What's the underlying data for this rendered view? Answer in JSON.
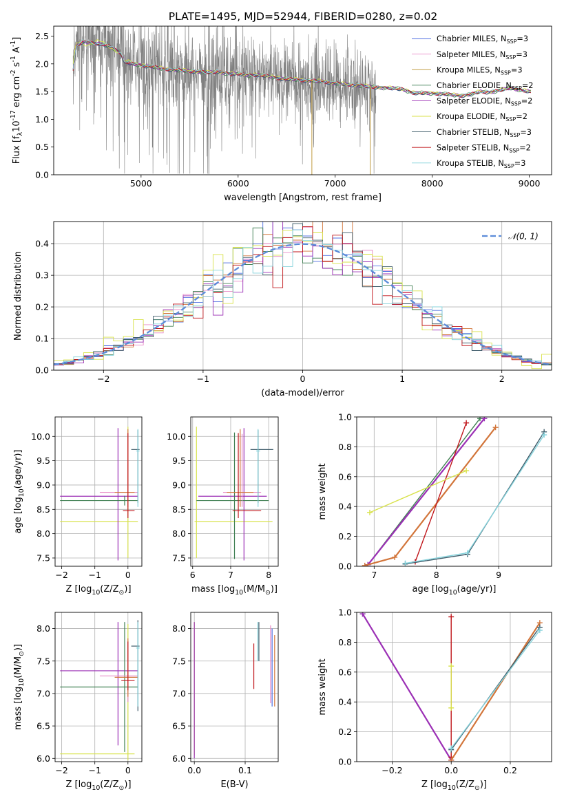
{
  "title": "PLATE=1495, MJD=52944, FIBERID=0280, z=0.02",
  "colors": {
    "chabrier_miles": "#4d6ee0",
    "salpeter_miles": "#e88ac6",
    "kroupa_miles": "#b9902a",
    "chabrier_elodie": "#3f7f52",
    "salpeter_elodie": "#9b2fb5",
    "kroupa_elodie": "#d8e24a",
    "chabrier_stelib": "#3f5c6a",
    "salpeter_stelib": "#c0161b",
    "kroupa_stelib": "#86d3dc",
    "orange": "#d2753a",
    "data": "#808080",
    "normal": "#5b8bd9"
  },
  "chart_data": [
    {
      "id": "spectrum",
      "type": "line",
      "title": "PLATE=1495, MJD=52944, FIBERID=0280, z=0.02",
      "xlabel": "wavelength [Angstrom, rest frame]",
      "ylabel": "Flux [f$_\\lambda$10$^{-17}$ erg cm$^{-2}$ s$^{-1}$ A$^{-1}$]",
      "xlim": [
        4100,
        9230
      ],
      "ylim": [
        0,
        2.68
      ],
      "xticks": [
        5000,
        6000,
        7000,
        8000,
        9000
      ],
      "yticks": [
        0.0,
        0.5,
        1.0,
        1.5,
        2.0,
        2.5
      ],
      "grid": false,
      "legend": {
        "placement": "top-right",
        "entries": [
          {
            "label": "Chabrier MILES, N",
            "sub": "SSP",
            "rest": "=3",
            "color": "#4d6ee0"
          },
          {
            "label": "Salpeter MILES, N",
            "sub": "SSP",
            "rest": "=3",
            "color": "#e88ac6"
          },
          {
            "label": "Kroupa MILES, N",
            "sub": "SSP",
            "rest": "=3",
            "color": "#b9902a"
          },
          {
            "label": "Chabrier ELODIE, N",
            "sub": "SSP",
            "rest": "=2",
            "color": "#3f7f52"
          },
          {
            "label": "Salpeter ELODIE, N",
            "sub": "SSP",
            "rest": "=2",
            "color": "#9b2fb5"
          },
          {
            "label": "Kroupa ELODIE, N",
            "sub": "SSP",
            "rest": "=2",
            "color": "#d8e24a"
          },
          {
            "label": "Chabrier STELIB, N",
            "sub": "SSP",
            "rest": "=3",
            "color": "#3f5c6a"
          },
          {
            "label": "Salpeter STELIB, N",
            "sub": "SSP",
            "rest": "=2",
            "color": "#c0161b"
          },
          {
            "label": "Kroupa STELIB, N",
            "sub": "SSP",
            "rest": "=3",
            "color": "#86d3dc"
          }
        ]
      },
      "data_range": [
        4300,
        7420
      ],
      "model_curve": {
        "x": [
          4300,
          4330,
          4400,
          4500,
          4600,
          4700,
          4790,
          4830,
          4900,
          5000,
          5100,
          5200,
          5300,
          5400,
          5500,
          5600,
          5700,
          5800,
          5900,
          6000,
          6100,
          6200,
          6300,
          6400,
          6500,
          6600,
          6700,
          6800,
          6900,
          7000,
          7100,
          7200,
          7300,
          7400,
          7500,
          7600,
          7700,
          7800,
          7900,
          8000,
          8100,
          8200,
          8300,
          8400,
          8500,
          8600,
          8700,
          8800,
          8900,
          9000
        ],
        "y": [
          1.9,
          2.32,
          2.4,
          2.38,
          2.35,
          2.3,
          2.2,
          2.03,
          2.0,
          1.98,
          1.95,
          1.92,
          1.9,
          1.88,
          1.87,
          1.86,
          1.84,
          1.86,
          1.82,
          1.82,
          1.8,
          1.8,
          1.78,
          1.75,
          1.72,
          1.72,
          1.7,
          1.69,
          1.68,
          1.65,
          1.63,
          1.62,
          1.6,
          1.58,
          1.57,
          1.56,
          1.54,
          1.48,
          1.47,
          1.47,
          1.46,
          1.44,
          1.43,
          1.45,
          1.5,
          1.49,
          1.52,
          1.57,
          1.53,
          1.5
        ]
      }
    },
    {
      "id": "residual-hist",
      "type": "line",
      "xlabel": "(data-model)/error",
      "ylabel": "Normed distribution",
      "xlim": [
        -2.5,
        2.5
      ],
      "ylim": [
        0,
        0.47
      ],
      "xticks": [
        -2,
        -1,
        0,
        1,
        2
      ],
      "yticks": [
        0.0,
        0.1,
        0.2,
        0.3,
        0.4
      ],
      "grid": true,
      "legend": {
        "placement": "top-right",
        "entries": [
          {
            "label": "𝒩(0, 1)",
            "color": "#5b8bd9",
            "dashed": true
          }
        ]
      },
      "bin_width": 0.1,
      "note": "step histograms of normalised residuals, one per model, close to a unit normal"
    },
    {
      "id": "age-vs-Z",
      "type": "scatter",
      "xlabel": "Z [log$_{10}$(Z/Z$_\\odot$)]",
      "ylabel": "age  [log$_{10}$(age/yr)]",
      "xlim": [
        -2.2,
        0.42
      ],
      "ylim": [
        7.33,
        10.4
      ],
      "xticks": [
        -2,
        -1,
        0
      ],
      "yticks": [
        7.5,
        8.0,
        8.5,
        9.0,
        9.5,
        10.0
      ],
      "grid": true,
      "errorbars": [
        {
          "x": 0.0,
          "xerr": [
            2.05,
            0.3
          ],
          "y": 8.25,
          "yerr": [
            0.75,
            1.95
          ],
          "color": "#d8e24a"
        },
        {
          "x": -0.3,
          "xerr": [
            1.75,
            0.6
          ],
          "y": 8.77,
          "yerr": [
            1.32,
            1.4
          ],
          "color": "#9b2fb5"
        },
        {
          "x": -0.1,
          "xerr": [
            1.95,
            0.4
          ],
          "y": 8.68,
          "yerr": [
            0.1,
            0.1
          ],
          "color": "#3f7f52"
        },
        {
          "x": 0.0,
          "xerr": [
            0.85,
            0.3
          ],
          "y": 8.85,
          "yerr": [
            0.3,
            1.2
          ],
          "color": "#e88ac6"
        },
        {
          "x": 0.0,
          "xerr": [
            0.4,
            0.2
          ],
          "y": 8.85,
          "yerr": [
            0.3,
            1.3
          ],
          "color": "#d2753a"
        },
        {
          "x": 0.0,
          "xerr": [
            0.15,
            0.2
          ],
          "y": 8.47,
          "yerr": [
            0.15,
            1.6
          ],
          "color": "#c0161b"
        },
        {
          "x": 0.3,
          "xerr": [
            0.2,
            0.05
          ],
          "y": 9.73,
          "yerr": [
            1.1,
            0.4
          ],
          "color": "#3f5c6a"
        },
        {
          "x": 0.3,
          "xerr": [
            0.05,
            0.05
          ],
          "y": 9.7,
          "yerr": [
            1.15,
            0.45
          ],
          "color": "#86d3dc"
        }
      ]
    },
    {
      "id": "age-vs-mass",
      "type": "scatter",
      "xlabel": "mass [log$_{10}$(M/M$_\\odot$)]",
      "ylabel": "",
      "xlim": [
        5.95,
        8.25
      ],
      "ylim": [
        7.33,
        10.4
      ],
      "xticks": [
        6,
        7,
        8
      ],
      "yticks": [
        7.5,
        8.0,
        8.5,
        9.0,
        9.5,
        10.0
      ],
      "grid": true,
      "errorbars": [
        {
          "x": 6.1,
          "xerr": [
            0.05,
            2.0
          ],
          "y": 8.25,
          "yerr": [
            0.75,
            1.95
          ],
          "color": "#d8e24a"
        },
        {
          "x": 7.35,
          "xerr": [
            1.2,
            0.6
          ],
          "y": 8.77,
          "yerr": [
            1.32,
            1.4
          ],
          "color": "#9b2fb5"
        },
        {
          "x": 7.1,
          "xerr": [
            1.0,
            0.9
          ],
          "y": 8.68,
          "yerr": [
            1.2,
            1.4
          ],
          "color": "#3f7f52"
        },
        {
          "x": 7.3,
          "xerr": [
            0.5,
            0.5
          ],
          "y": 8.85,
          "yerr": [
            0.3,
            1.2
          ],
          "color": "#e88ac6"
        },
        {
          "x": 7.25,
          "xerr": [
            0.35,
            0.35
          ],
          "y": 8.85,
          "yerr": [
            0.3,
            1.3
          ],
          "color": "#d2753a"
        },
        {
          "x": 7.2,
          "xerr": [
            0.15,
            0.6
          ],
          "y": 8.47,
          "yerr": [
            0.15,
            1.6
          ],
          "color": "#c0161b"
        },
        {
          "x": 7.72,
          "xerr": [
            0.2,
            0.4
          ],
          "y": 9.73,
          "yerr": [
            1.1,
            0.4
          ],
          "color": "#3f5c6a"
        },
        {
          "x": 7.72,
          "xerr": [
            0.05,
            0.05
          ],
          "y": 9.7,
          "yerr": [
            1.15,
            0.45
          ],
          "color": "#86d3dc"
        }
      ]
    },
    {
      "id": "massweight-vs-age",
      "type": "line",
      "xlabel": "age  [log$_{10}$(age/yr)]",
      "ylabel": "mass weight",
      "xlim": [
        6.72,
        9.85
      ],
      "ylim": [
        0,
        1.0
      ],
      "xticks": [
        7,
        8,
        9
      ],
      "yticks": [
        0.0,
        0.2,
        0.4,
        0.6,
        0.8,
        1.0
      ],
      "grid": true,
      "series": [
        {
          "color": "#4d6ee0",
          "x": [
            6.9,
            8.77
          ],
          "y": [
            0.01,
            0.99
          ]
        },
        {
          "color": "#e88ac6",
          "x": [
            6.9,
            8.77
          ],
          "y": [
            0.01,
            0.99
          ]
        },
        {
          "color": "#3f7f52",
          "x": [
            6.9,
            8.7
          ],
          "y": [
            0.01,
            0.99
          ]
        },
        {
          "color": "#9b2fb5",
          "x": [
            6.9,
            8.77
          ],
          "y": [
            0.01,
            0.99
          ]
        },
        {
          "color": "#d2753a",
          "x": [
            6.85,
            7.33,
            8.95
          ],
          "y": [
            0.005,
            0.06,
            0.93
          ]
        },
        {
          "color": "#c0161b",
          "x": [
            7.66,
            8.48
          ],
          "y": [
            0.03,
            0.96
          ]
        },
        {
          "color": "#d8e24a",
          "x": [
            6.93,
            8.48
          ],
          "y": [
            0.36,
            0.64
          ]
        },
        {
          "color": "#3f5c6a",
          "x": [
            7.5,
            8.5,
            9.73
          ],
          "y": [
            0.015,
            0.08,
            0.9
          ]
        },
        {
          "color": "#86d3dc",
          "x": [
            7.5,
            8.5,
            9.73
          ],
          "y": [
            0.02,
            0.09,
            0.88
          ]
        }
      ]
    },
    {
      "id": "mass-vs-Z",
      "type": "scatter",
      "xlabel": "Z [log$_{10}$(Z/Z$_\\odot$)]",
      "ylabel": "mass [log$_{10}$(M/M$_\\odot$)]",
      "xlim": [
        -2.2,
        0.42
      ],
      "ylim": [
        5.95,
        8.25
      ],
      "xticks": [
        -2,
        -1,
        0
      ],
      "yticks": [
        6.0,
        6.5,
        7.0,
        7.5,
        8.0
      ],
      "grid": true,
      "errorbars": [
        {
          "x": 0.0,
          "xerr": [
            2.05,
            0.2
          ],
          "y": 6.07,
          "yerr": [
            0.1,
            2.0
          ],
          "color": "#d8e24a"
        },
        {
          "x": -0.3,
          "xerr": [
            1.75,
            0.6
          ],
          "y": 7.35,
          "yerr": [
            1.15,
            0.75
          ],
          "color": "#9b2fb5"
        },
        {
          "x": -0.1,
          "xerr": [
            1.95,
            0.4
          ],
          "y": 7.1,
          "yerr": [
            1.0,
            1.0
          ],
          "color": "#3f7f52"
        },
        {
          "x": 0.0,
          "xerr": [
            0.85,
            0.3
          ],
          "y": 7.27,
          "yerr": [
            0.4,
            0.5
          ],
          "color": "#e88ac6"
        },
        {
          "x": 0.0,
          "xerr": [
            0.4,
            0.3
          ],
          "y": 7.25,
          "yerr": [
            0.3,
            0.6
          ],
          "color": "#d2753a"
        },
        {
          "x": 0.0,
          "xerr": [
            0.2,
            0.2
          ],
          "y": 7.2,
          "yerr": [
            0.15,
            0.6
          ],
          "color": "#c0161b"
        },
        {
          "x": 0.3,
          "xerr": [
            0.2,
            0.05
          ],
          "y": 7.73,
          "yerr": [
            1.0,
            0.4
          ],
          "color": "#3f5c6a"
        },
        {
          "x": 0.3,
          "xerr": [
            0.05,
            0.05
          ],
          "y": 7.7,
          "yerr": [
            0.9,
            0.4
          ],
          "color": "#86d3dc"
        }
      ]
    },
    {
      "id": "mass-vs-ebv",
      "type": "scatter",
      "xlabel": "E(B-V)",
      "ylabel": "",
      "xlim": [
        -0.007,
        0.165
      ],
      "ylim": [
        5.95,
        8.25
      ],
      "xticks": [
        0.0,
        0.1
      ],
      "xtick_labels": [
        "0.0",
        "0.1"
      ],
      "yticks": [
        6.0,
        6.5,
        7.0,
        7.5,
        8.0
      ],
      "grid": true,
      "errorbars": [
        {
          "x": 0.0,
          "y": 7.1,
          "yerr": [
            1.05,
            1.0
          ],
          "color": "#d8e24a"
        },
        {
          "x": 0.0,
          "y": 7.2,
          "yerr": [
            1.2,
            0.9
          ],
          "color": "#9b2fb5"
        },
        {
          "x": 0.117,
          "y": 7.42,
          "yerr": [
            0.35,
            0.35
          ],
          "color": "#c0161b"
        },
        {
          "x": 0.125,
          "y": 7.8,
          "yerr": [
            0.3,
            0.3
          ],
          "color": "#86d3dc"
        },
        {
          "x": 0.127,
          "y": 7.8,
          "yerr": [
            0.3,
            0.3
          ],
          "color": "#3f5c6a"
        },
        {
          "x": 0.15,
          "y": 7.45,
          "yerr": [
            0.6,
            0.6
          ],
          "color": "#e88ac6"
        },
        {
          "x": 0.153,
          "y": 7.4,
          "yerr": [
            0.6,
            0.6
          ],
          "color": "#4d6ee0"
        },
        {
          "x": 0.158,
          "y": 7.35,
          "yerr": [
            0.55,
            0.55
          ],
          "color": "#d2753a"
        }
      ]
    },
    {
      "id": "massweight-vs-Z",
      "type": "line",
      "xlabel": "Z [log$_{10}$(Z/Z$_\\odot$)]",
      "ylabel": "mass weight",
      "xlim": [
        -0.32,
        0.34
      ],
      "ylim": [
        0,
        1.0
      ],
      "xticks": [
        -0.2,
        0.0,
        0.2
      ],
      "xtick_labels": [
        "−0.2",
        "0.0",
        "0.2"
      ],
      "yticks": [
        0.0,
        0.2,
        0.4,
        0.6,
        0.8,
        1.0
      ],
      "grid": true,
      "series": [
        {
          "color": "#4d6ee0",
          "x": [
            -0.3,
            0.0
          ],
          "y": [
            0.99,
            0.01
          ]
        },
        {
          "color": "#e88ac6",
          "x": [
            -0.3,
            0.0
          ],
          "y": [
            0.99,
            0.01
          ]
        },
        {
          "color": "#3f7f52",
          "x": [
            -0.3,
            0.0
          ],
          "y": [
            0.99,
            0.01
          ]
        },
        {
          "color": "#9b2fb5",
          "x": [
            -0.3,
            0.0
          ],
          "y": [
            0.99,
            0.01
          ]
        },
        {
          "color": "#c0161b",
          "x": [
            0.0,
            0.0
          ],
          "y": [
            0.03,
            0.97
          ]
        },
        {
          "color": "#d8e24a",
          "x": [
            0.0,
            0.0
          ],
          "y": [
            0.36,
            0.64
          ]
        },
        {
          "color": "#d2753a",
          "x": [
            0.0,
            0.3
          ],
          "y": [
            0.01,
            0.93
          ]
        },
        {
          "color": "#3f5c6a",
          "x": [
            0.0,
            0.3
          ],
          "y": [
            0.08,
            0.9
          ]
        },
        {
          "color": "#86d3dc",
          "x": [
            0.0,
            0.3
          ],
          "y": [
            0.09,
            0.88
          ]
        }
      ]
    }
  ]
}
